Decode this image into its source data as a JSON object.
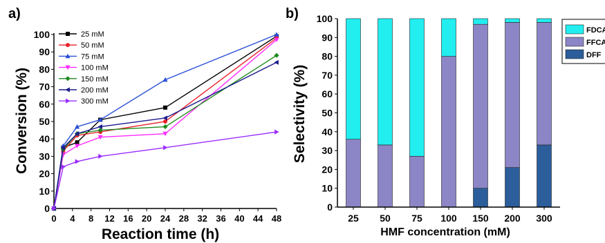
{
  "chart_data": [
    {
      "panel_label": "a)",
      "type": "line",
      "title": "",
      "xlabel": "Reaction time (h)",
      "ylabel": "Conversion (%)",
      "xlim": [
        0,
        48
      ],
      "ylim": [
        0,
        100
      ],
      "xticks": [
        0,
        4,
        8,
        12,
        16,
        20,
        24,
        28,
        32,
        36,
        40,
        44,
        48
      ],
      "yticks": [
        0,
        10,
        20,
        30,
        40,
        50,
        60,
        70,
        80,
        90,
        100
      ],
      "legend_position": "top-left",
      "series": [
        {
          "name": "25 mM",
          "color": "#000000",
          "marker": "square",
          "x": [
            0,
            2,
            5,
            10,
            24,
            48
          ],
          "y": [
            0,
            35,
            38,
            51,
            58,
            99
          ]
        },
        {
          "name": "50 mM",
          "color": "#e8202a",
          "marker": "circle",
          "x": [
            0,
            2,
            5,
            10,
            24,
            48
          ],
          "y": [
            0,
            33,
            42,
            44,
            50,
            98
          ]
        },
        {
          "name": "75 mM",
          "color": "#2a4fd6",
          "marker": "triangle-up",
          "x": [
            0,
            2,
            5,
            10,
            24,
            48
          ],
          "y": [
            0,
            36,
            47,
            51,
            74,
            100
          ]
        },
        {
          "name": "100 mM",
          "color": "#ff2cff",
          "marker": "triangle-down",
          "x": [
            0,
            2,
            5,
            10,
            24,
            48
          ],
          "y": [
            0,
            31,
            36,
            41,
            43,
            97
          ]
        },
        {
          "name": "150 mM",
          "color": "#1f8a1f",
          "marker": "diamond",
          "x": [
            0,
            2,
            5,
            10,
            24,
            48
          ],
          "y": [
            0,
            34,
            43,
            45,
            47,
            88
          ]
        },
        {
          "name": "200 mM",
          "color": "#1c1c8c",
          "marker": "triangle-left",
          "x": [
            0,
            2,
            5,
            10,
            24,
            48
          ],
          "y": [
            0,
            35,
            43,
            47,
            52,
            84
          ]
        },
        {
          "name": "300 mM",
          "color": "#9a2cff",
          "marker": "triangle-right",
          "x": [
            0,
            2,
            5,
            10,
            24,
            48
          ],
          "y": [
            0,
            24,
            27,
            30,
            35,
            44
          ]
        }
      ]
    },
    {
      "panel_label": "b)",
      "type": "bar",
      "stacked": true,
      "title": "",
      "xlabel": "HMF concentration (mM)",
      "ylabel": "Selectivity (%)",
      "ylim": [
        0,
        100
      ],
      "yticks": [
        0,
        10,
        20,
        30,
        40,
        50,
        60,
        70,
        80,
        90,
        100
      ],
      "legend_position": "right",
      "categories": [
        "25",
        "50",
        "75",
        "100",
        "150",
        "200",
        "300"
      ],
      "series": [
        {
          "name": "DFF",
          "color": "#2b5e9a",
          "values": [
            0,
            0,
            0,
            0,
            10,
            21,
            33
          ]
        },
        {
          "name": "FFCA",
          "color": "#8c86c6",
          "values": [
            36,
            33,
            27,
            80,
            87,
            77,
            65
          ]
        },
        {
          "name": "FDCA",
          "color": "#22eef0",
          "values": [
            64,
            67,
            73,
            20,
            3,
            2,
            2
          ]
        }
      ],
      "legend_order": [
        "FDCA",
        "FFCA",
        "DFF"
      ]
    }
  ]
}
